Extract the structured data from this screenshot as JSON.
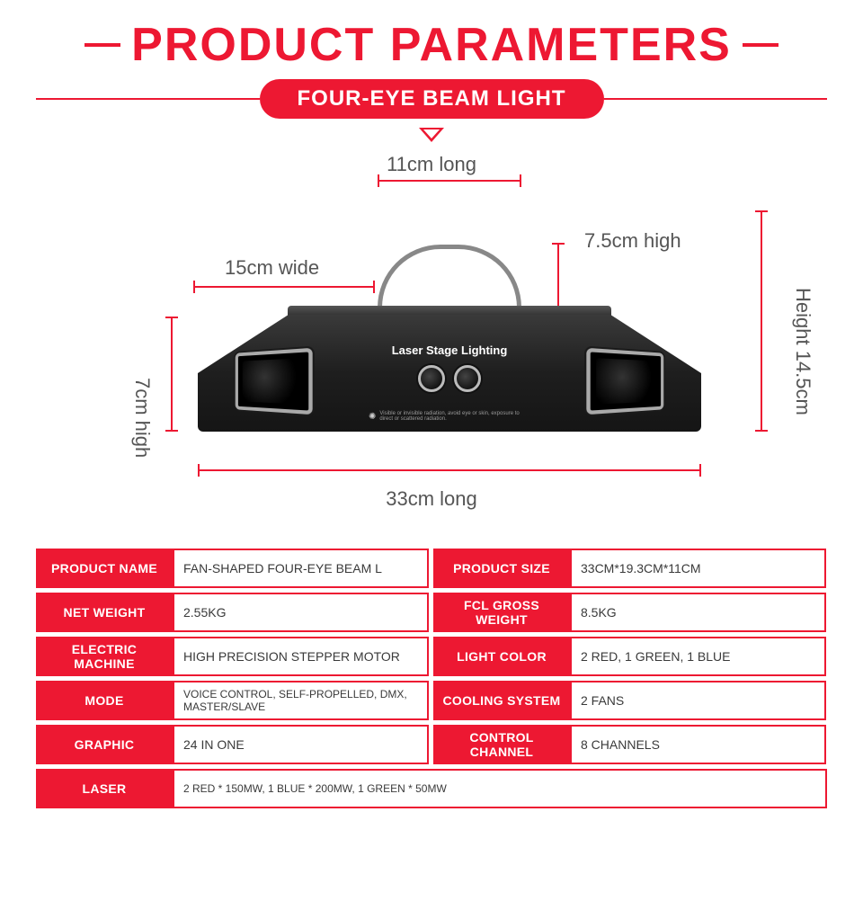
{
  "colors": {
    "accent": "#ed1832",
    "text_dark": "#3a3a3a",
    "dim_label": "#555555",
    "white": "#ffffff"
  },
  "header": {
    "title": "PRODUCT PARAMETERS",
    "subtitle": "FOUR-EYE BEAM LIGHT"
  },
  "diagram": {
    "product_text": "Laser Stage Lighting",
    "warning": "Visible or invisible radiation, avoid eye or skin, exposure to direct or scattered radiation.",
    "dims": {
      "top_long": "11cm long",
      "handle_high": "7.5cm high",
      "wide": "15cm wide",
      "body_high": "7cm high",
      "bottom_long": "33cm long",
      "total_height": "Height 14.5cm"
    }
  },
  "specs": [
    {
      "label": "PRODUCT NAME",
      "value": "FAN-SHAPED FOUR-EYE BEAM L",
      "half": true
    },
    {
      "label": "PRODUCT SIZE",
      "value": "33CM*19.3CM*11CM",
      "half": true
    },
    {
      "label": "NET WEIGHT",
      "value": "2.55KG",
      "half": true
    },
    {
      "label": "FCL GROSS WEIGHT",
      "value": "8.5KG",
      "half": true
    },
    {
      "label": "ELECTRIC MACHINE",
      "value": "HIGH PRECISION STEPPER MOTOR",
      "half": true
    },
    {
      "label": "LIGHT COLOR",
      "value": "2 RED, 1 GREEN, 1 BLUE",
      "half": true
    },
    {
      "label": "MODE",
      "value": "VOICE CONTROL, SELF-PROPELLED, DMX, MASTER/SLAVE",
      "half": true
    },
    {
      "label": "COOLING SYSTEM",
      "value": "2 FANS",
      "half": true
    },
    {
      "label": "GRAPHIC",
      "value": "24 IN ONE",
      "half": true
    },
    {
      "label": "CONTROL CHANNEL",
      "value": "8 CHANNELS",
      "half": true
    },
    {
      "label": "LASER",
      "value": "2 RED * 150MW, 1 BLUE * 200MW, 1 GREEN * 50MW",
      "half": false
    }
  ]
}
